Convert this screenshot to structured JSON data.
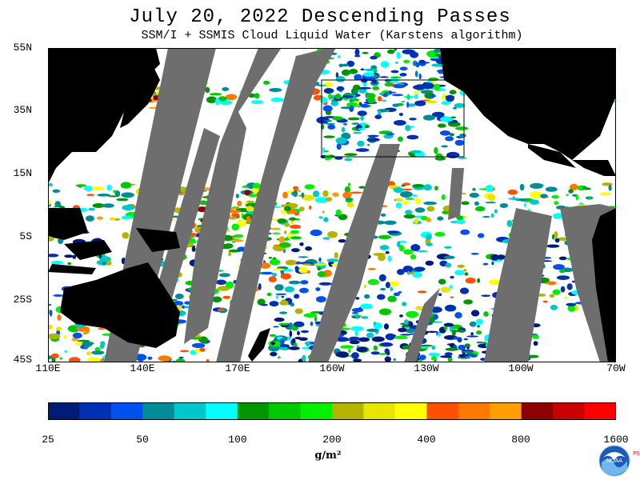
{
  "title": "July 20, 2022  Descending Passes",
  "subtitle": "SSM/I + SSMIS Cloud Liquid Water (Karstens algorithm)",
  "map": {
    "lat_labels": [
      "55N",
      "35N",
      "15N",
      "5S",
      "25S",
      "45S"
    ],
    "lon_labels": [
      "110E",
      "140E",
      "170E",
      "160W",
      "130W",
      "100W",
      "70W"
    ],
    "colors": {
      "land": "#000000",
      "no_data": "#6e6e6e",
      "clear": "#ffffff"
    }
  },
  "colorbar": {
    "tick_labels": [
      "25",
      "50",
      "100",
      "200",
      "400",
      "800",
      "1600"
    ],
    "unit": "g/m²",
    "colors": [
      "#001a7a",
      "#0030b4",
      "#0050f0",
      "#008c96",
      "#00c8c8",
      "#00ffff",
      "#009600",
      "#00c800",
      "#00f000",
      "#b4b400",
      "#e6e600",
      "#ffff00",
      "#ff5000",
      "#ff7800",
      "#ffa000",
      "#8c0000",
      "#c80000",
      "#ff0000"
    ]
  },
  "logo": {
    "text": "NOAA",
    "side_text": "PSL"
  }
}
